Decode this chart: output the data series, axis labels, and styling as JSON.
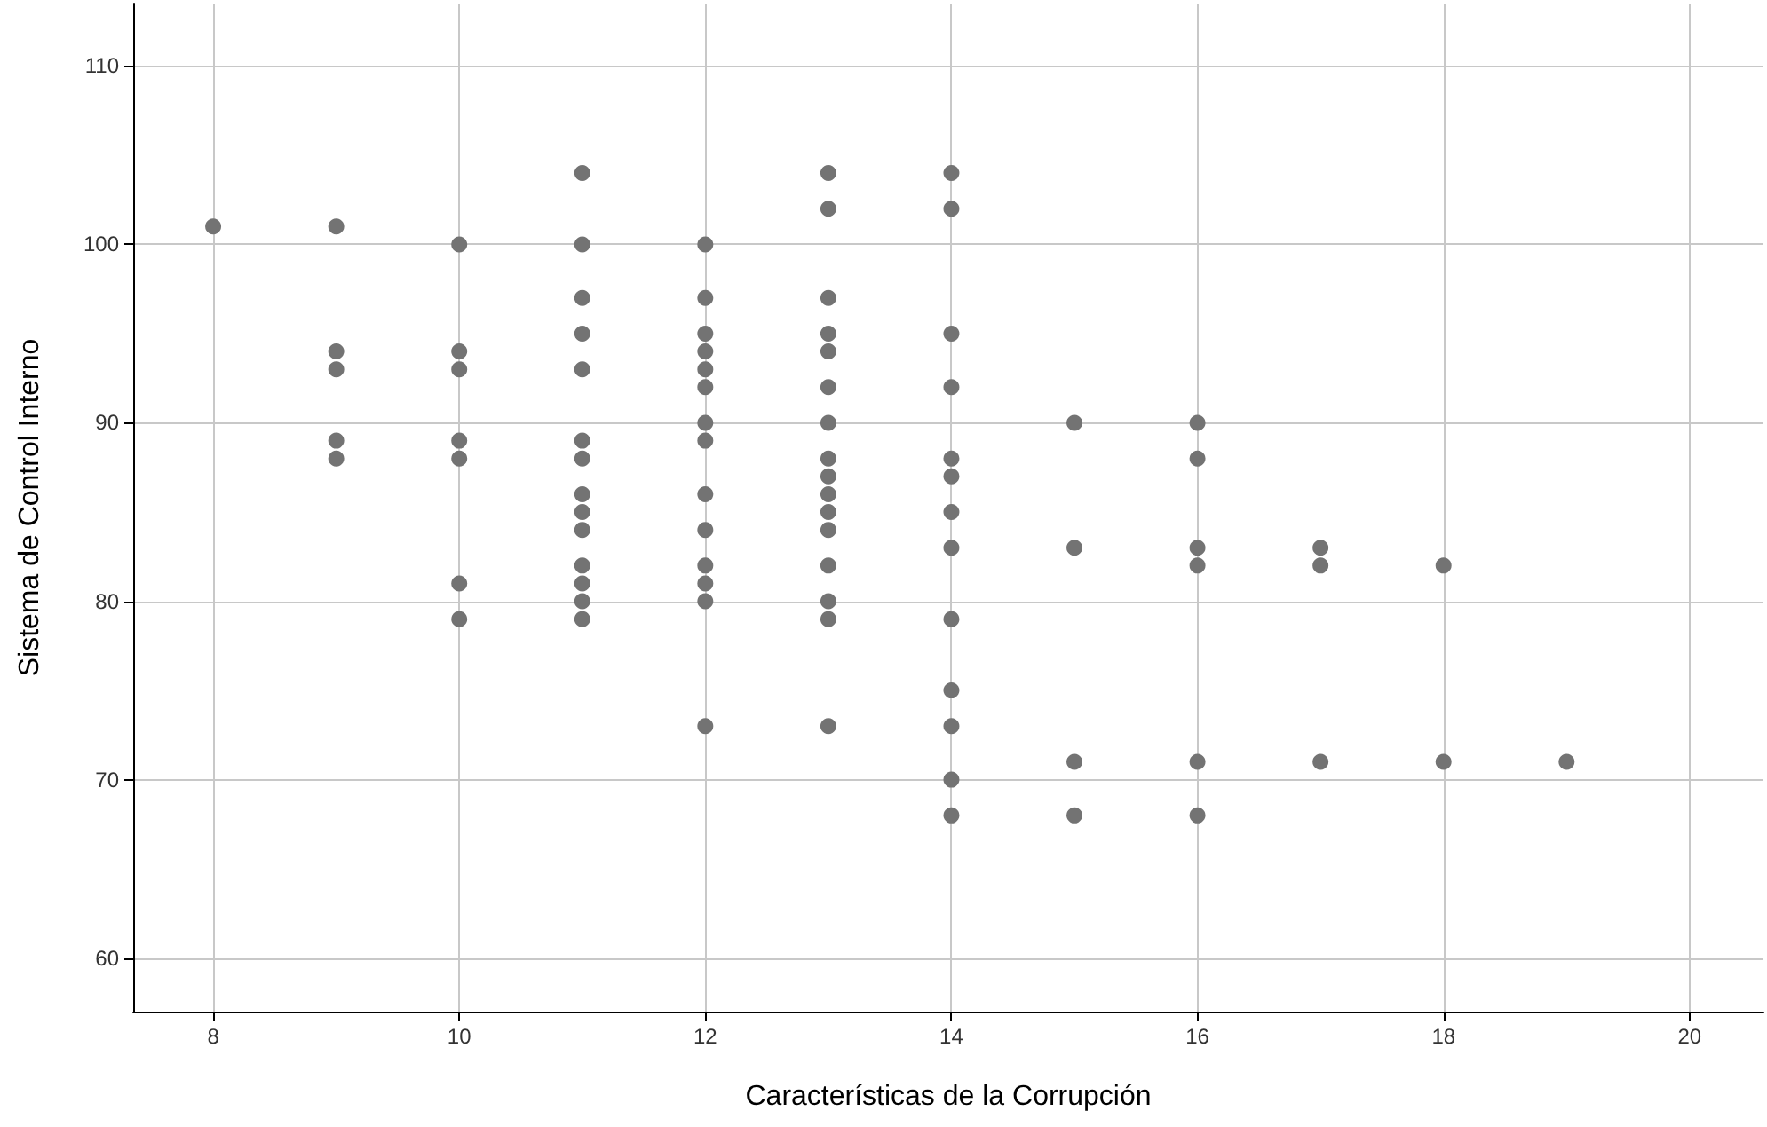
{
  "chart_data": {
    "type": "scatter",
    "xlabel": "Características de la Corrupción",
    "ylabel": "Sistema de Control Interno",
    "x": [
      8,
      9,
      9,
      9,
      9,
      9,
      10,
      10,
      10,
      10,
      10,
      10,
      10,
      11,
      11,
      11,
      11,
      11,
      11,
      11,
      11,
      11,
      11,
      11,
      11,
      11,
      11,
      12,
      12,
      12,
      12,
      12,
      12,
      12,
      12,
      12,
      12,
      12,
      12,
      12,
      12,
      13,
      13,
      13,
      13,
      13,
      13,
      13,
      13,
      13,
      13,
      13,
      13,
      13,
      13,
      13,
      13,
      14,
      14,
      14,
      14,
      14,
      14,
      14,
      14,
      14,
      14,
      14,
      14,
      14,
      15,
      15,
      15,
      15,
      16,
      16,
      16,
      16,
      16,
      16,
      17,
      17,
      17,
      18,
      18,
      19
    ],
    "series": [
      {
        "color": "#737373",
        "values": [
          101,
          101,
          94,
          93,
          89,
          88,
          100,
          94,
          93,
          89,
          88,
          81,
          79,
          104,
          100,
          97,
          95,
          93,
          89,
          88,
          86,
          85,
          84,
          82,
          81,
          80,
          79,
          100,
          97,
          95,
          94,
          93,
          92,
          90,
          89,
          86,
          84,
          82,
          81,
          80,
          73,
          104,
          102,
          97,
          95,
          94,
          92,
          90,
          88,
          87,
          86,
          85,
          84,
          82,
          80,
          79,
          73,
          104,
          102,
          95,
          92,
          88,
          87,
          85,
          83,
          79,
          75,
          73,
          70,
          68,
          90,
          83,
          71,
          68,
          90,
          88,
          83,
          82,
          71,
          68,
          83,
          82,
          71,
          82,
          71,
          71
        ]
      }
    ],
    "xlim": [
      7.35,
      20.6
    ],
    "ylim": [
      57,
      113.5
    ],
    "xticks": [
      8,
      10,
      12,
      14,
      16,
      18,
      20
    ],
    "yticks": [
      60,
      70,
      80,
      90,
      100,
      110
    ],
    "grid": true,
    "marker": "circle"
  }
}
